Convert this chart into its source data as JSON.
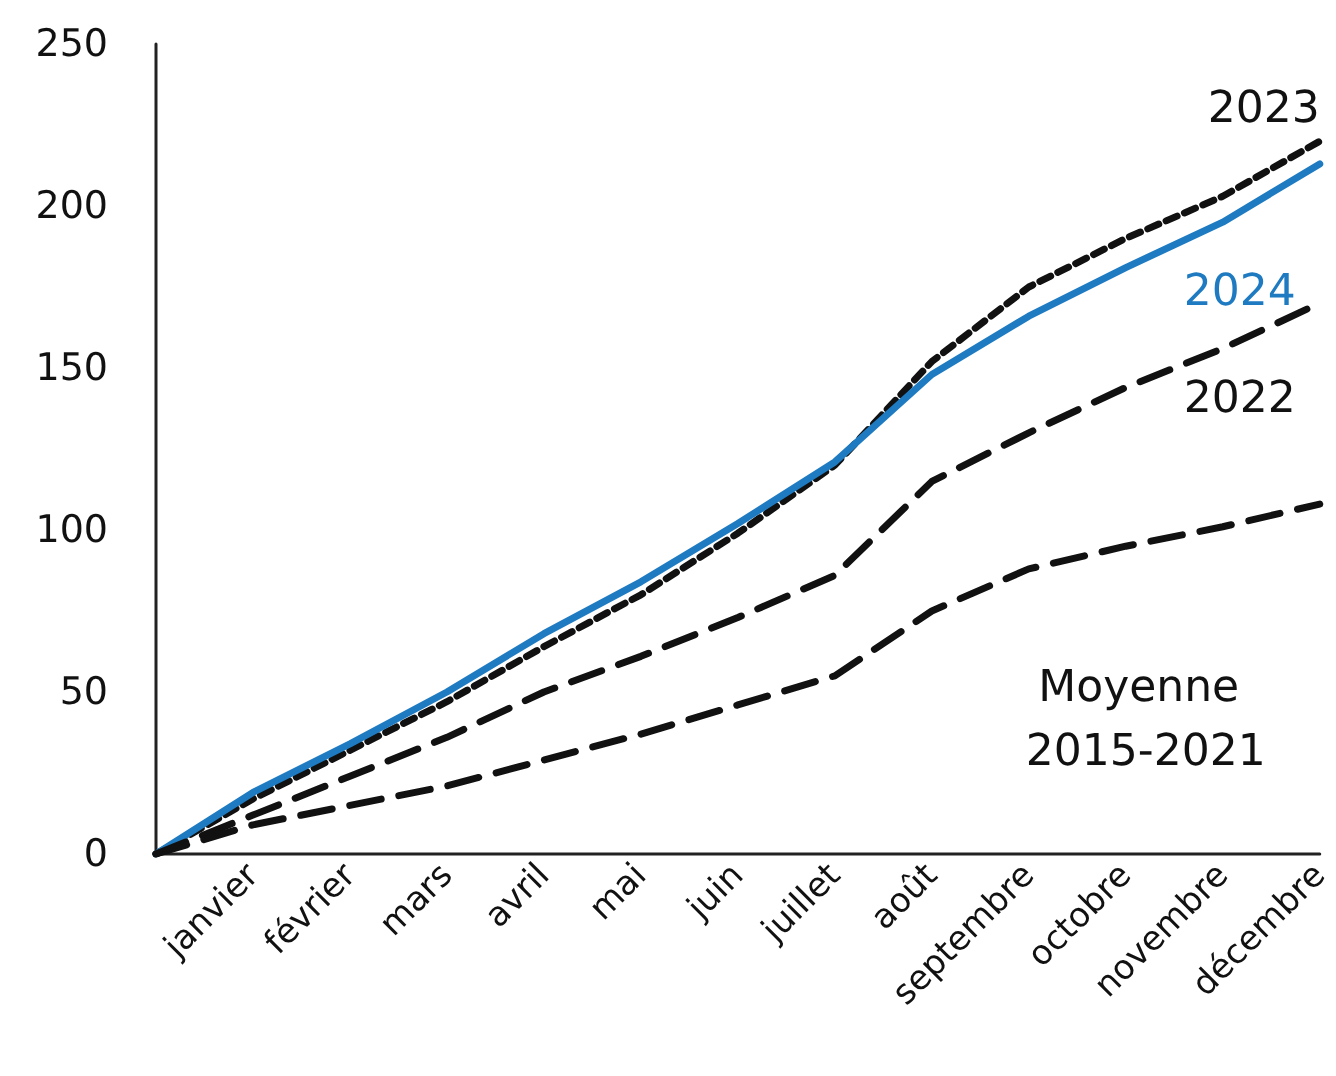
{
  "chart_data": {
    "type": "line",
    "categories": [
      null,
      "janvier",
      "février",
      "mars",
      "avril",
      "mai",
      "juin",
      "juillet",
      "août",
      "septembre",
      "octobre",
      "novembre",
      "décembre"
    ],
    "series": [
      {
        "name": "2023",
        "color": "#111111",
        "line_style": "dotted",
        "values": [
          0,
          17,
          32,
          47,
          64,
          80,
          99,
          120,
          152,
          175,
          190,
          203,
          220
        ]
      },
      {
        "name": "2024",
        "color": "#1f7bc1",
        "line_style": "solid",
        "values": [
          0,
          19,
          34,
          50,
          68,
          84,
          102,
          121,
          148,
          166,
          181,
          195,
          213
        ]
      },
      {
        "name": "2022",
        "color": "#111111",
        "line_style": "dashed",
        "values": [
          0,
          12,
          24,
          36,
          50,
          61,
          73,
          86,
          115,
          130,
          144,
          156,
          170
        ]
      },
      {
        "name": "Moyenne 2015-2021",
        "color": "#111111",
        "line_style": "dashed",
        "values": [
          0,
          9,
          15,
          21,
          29,
          37,
          46,
          55,
          75,
          88,
          95,
          101,
          108
        ]
      }
    ],
    "ylim": [
      0,
      250
    ],
    "yticks": [
      0,
      50,
      100,
      150,
      200,
      250
    ],
    "grid": false,
    "legend": false,
    "marker": "none"
  }
}
